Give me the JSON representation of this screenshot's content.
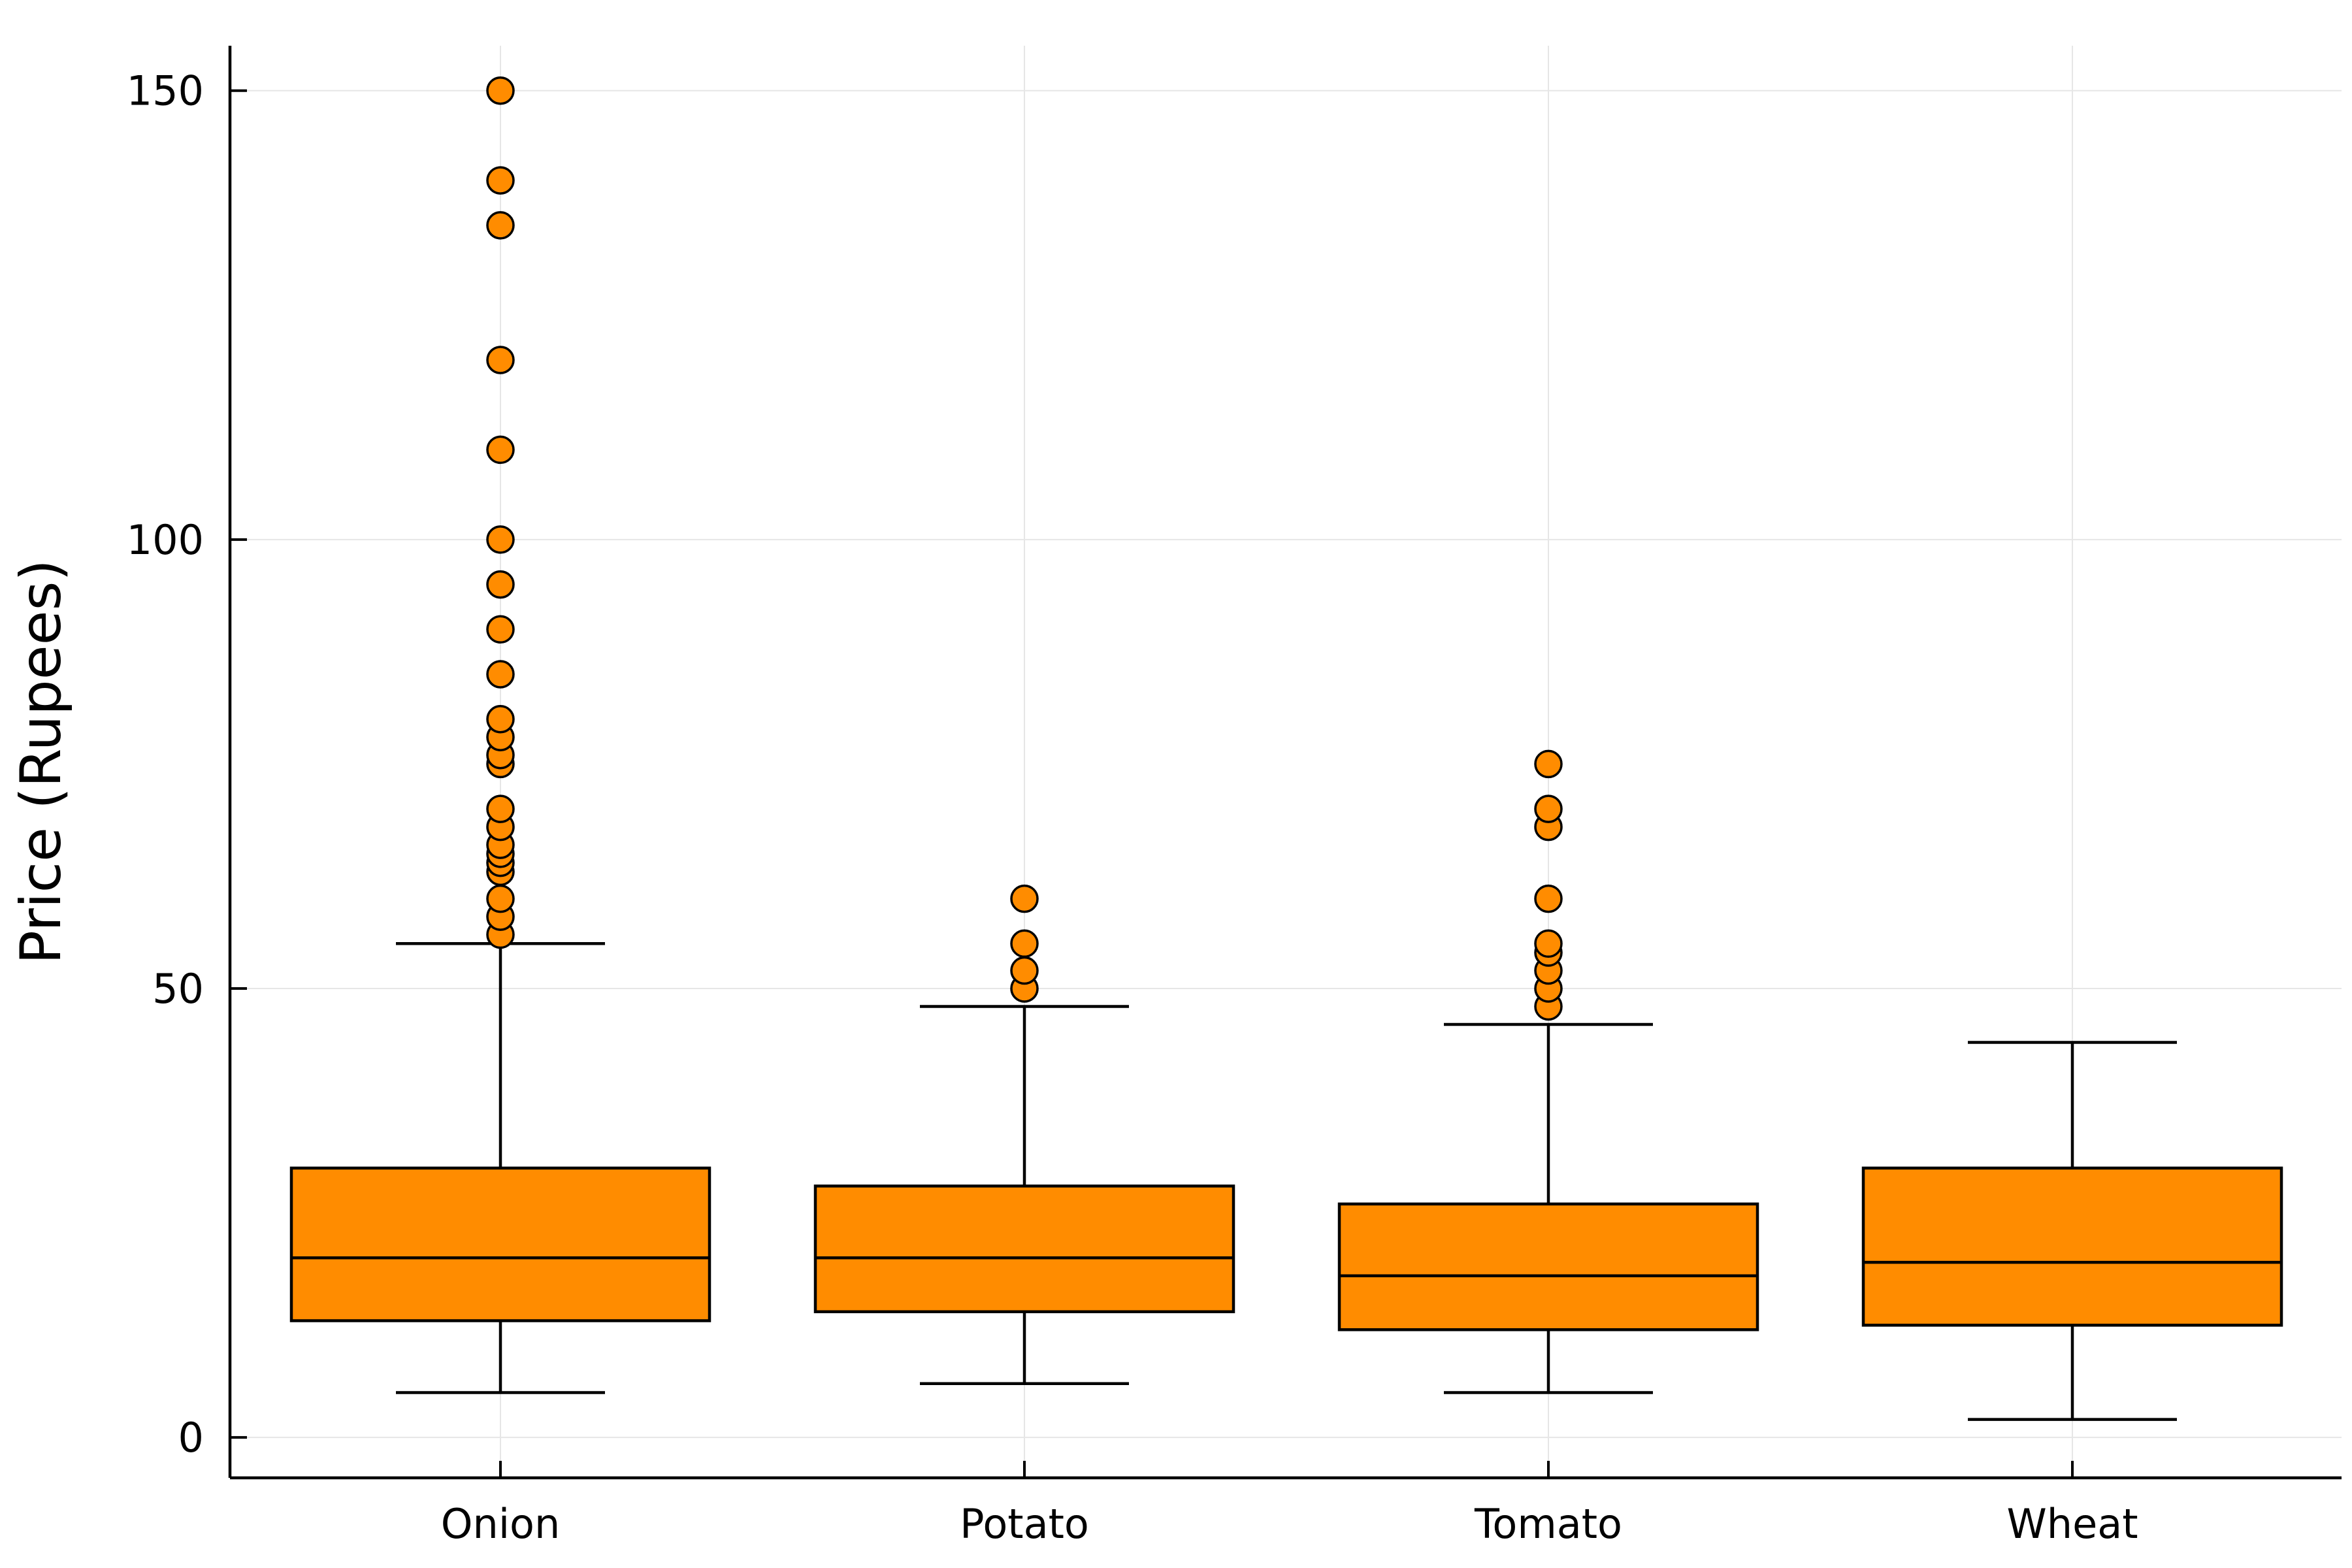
{
  "chart_data": {
    "type": "box",
    "title": "",
    "xlabel": "",
    "ylabel": "Price (Rupees)",
    "ylim": [
      -4.5,
      155
    ],
    "yticks": [
      0,
      50,
      100,
      150
    ],
    "grid": true,
    "legend": "none",
    "colors": {
      "box_fill": "#ff8c00",
      "outline": "#000000",
      "grid": "#e6e6e6"
    },
    "categories": [
      "Onion",
      "Potato",
      "Tomato",
      "Wheat"
    ],
    "boxes": [
      {
        "category": "Onion",
        "whisker_low": 5,
        "q1": 13,
        "median": 20,
        "q3": 30,
        "whisker_high": 55,
        "outliers": [
          56,
          58,
          60,
          63,
          64,
          65,
          66,
          68,
          70,
          75,
          76,
          78,
          80,
          85,
          90,
          95,
          100,
          110,
          120,
          135,
          140,
          150
        ]
      },
      {
        "category": "Potato",
        "whisker_low": 6,
        "q1": 14,
        "median": 20,
        "q3": 28,
        "whisker_high": 48,
        "outliers": [
          50,
          52,
          55,
          60
        ]
      },
      {
        "category": "Tomato",
        "whisker_low": 5,
        "q1": 12,
        "median": 18,
        "q3": 26,
        "whisker_high": 46,
        "outliers": [
          48,
          50,
          52,
          54,
          55,
          60,
          68,
          70,
          75
        ]
      },
      {
        "category": "Wheat",
        "whisker_low": 2,
        "q1": 12.5,
        "median": 19.5,
        "q3": 30,
        "whisker_high": 44,
        "outliers": []
      }
    ]
  }
}
